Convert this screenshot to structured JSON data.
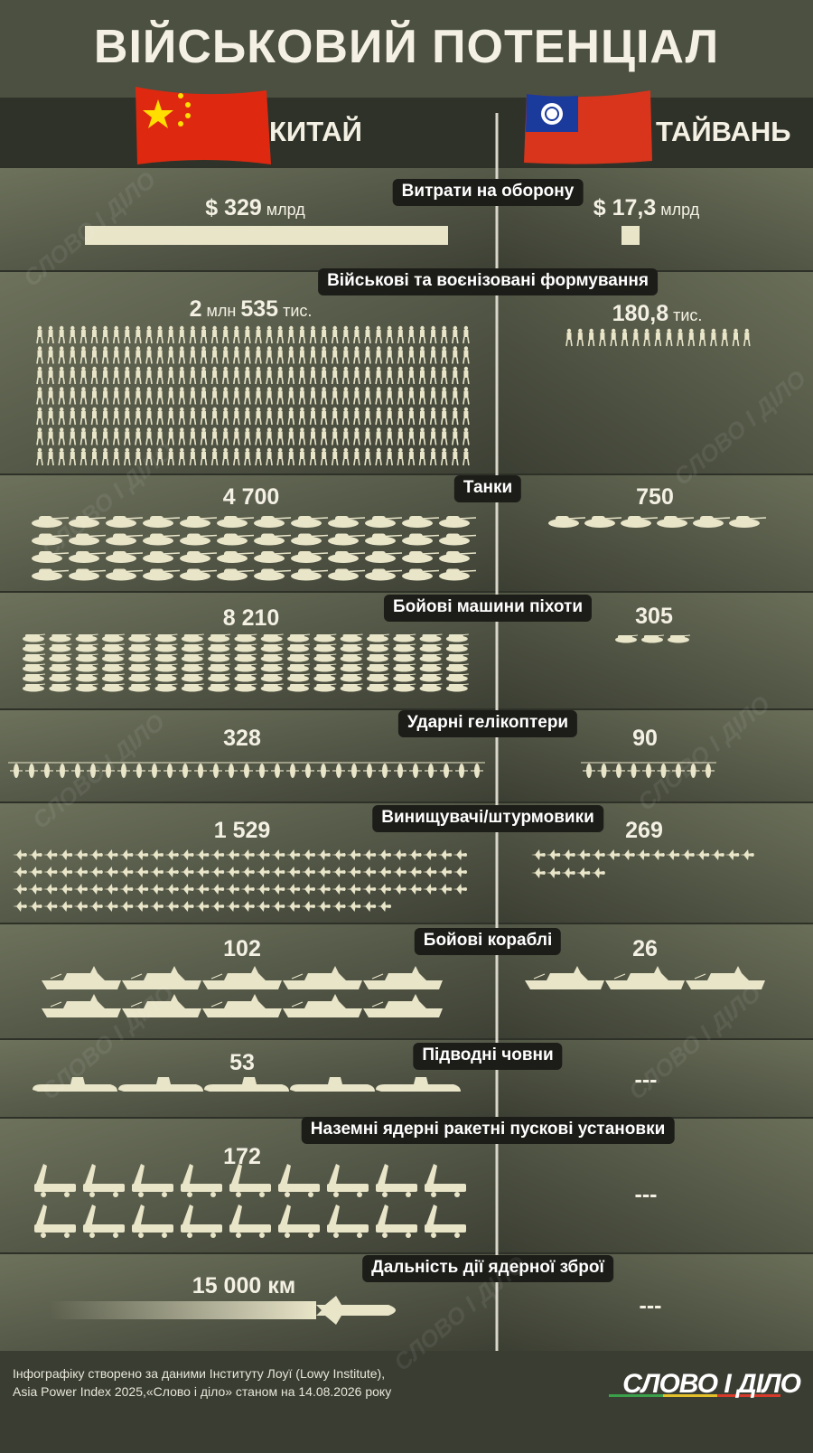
{
  "title": "ВІЙСЬКОВИЙ ПОТЕНЦІАЛ",
  "countries": {
    "china": "КИТАЙ",
    "taiwan": "ТАЙВАНЬ"
  },
  "watermark": "СЛОВО І ДІЛО",
  "sections": [
    {
      "label": "Витрати на оборону",
      "china": [
        "$ 329",
        "млрд"
      ],
      "taiwan": [
        "$ 17,3",
        "млрд"
      ]
    },
    {
      "label": "Військові та воєнізовані формування",
      "china": [
        "2",
        "млн",
        "535",
        "тис."
      ],
      "taiwan": [
        "180,8",
        "тис."
      ]
    },
    {
      "label": "Танки",
      "china": [
        "4 700"
      ],
      "taiwan": [
        "750"
      ]
    },
    {
      "label": "Бойові машини піхоти",
      "china": [
        "8 210"
      ],
      "taiwan": [
        "305"
      ]
    },
    {
      "label": "Ударні гелікоптери",
      "china": [
        "328"
      ],
      "taiwan": [
        "90"
      ]
    },
    {
      "label": "Винищувачі/штурмовики",
      "china": [
        "1 529"
      ],
      "taiwan": [
        "269"
      ]
    },
    {
      "label": "Бойові кораблі",
      "china": [
        "102"
      ],
      "taiwan": [
        "26"
      ]
    },
    {
      "label": "Підводні човни",
      "china": [
        "53"
      ],
      "taiwan": [
        "---"
      ]
    },
    {
      "label": "Наземні ядерні ракетні пускові установки",
      "china": [
        "172"
      ],
      "taiwan": [
        "---"
      ]
    },
    {
      "label": "Дальність дії ядерної зброї",
      "china": [
        "15 000 км"
      ],
      "taiwan": [
        "---"
      ]
    }
  ],
  "footer": {
    "lines": [
      "Інфографіку створено за даними Інституту Лоуї (Lowy Institute),",
      "Asia Power Index 2025,«Слово і діло» станом на 14.08.2026 року"
    ],
    "logo": "СЛОВО І ДІЛО"
  }
}
